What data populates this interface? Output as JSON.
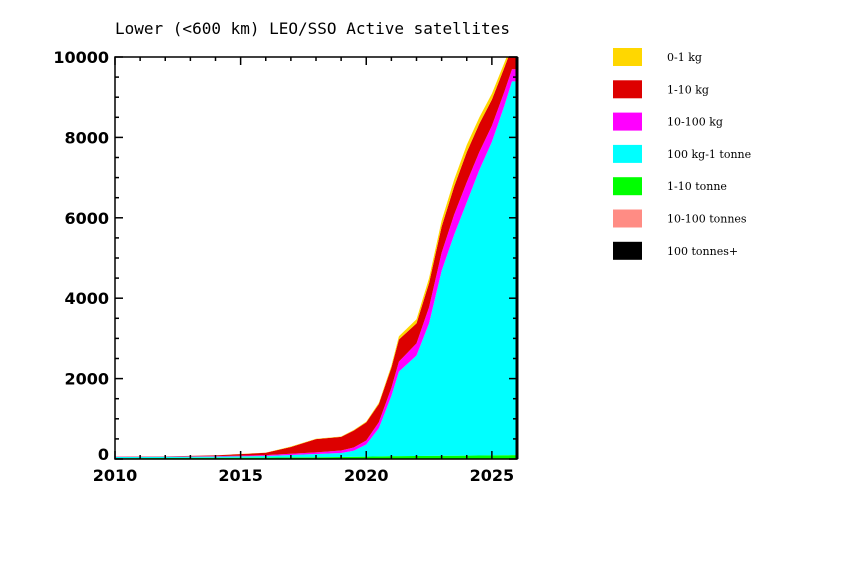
{
  "chart_data": {
    "type": "area",
    "stacked": true,
    "title": "Lower (<600 km) LEO/SSO Active satellites",
    "xlabel": "",
    "ylabel": "",
    "xlim": [
      2010,
      2026
    ],
    "ylim": [
      0,
      10000
    ],
    "x_ticks": [
      "2010",
      "2015",
      "2020",
      "2025"
    ],
    "y_ticks": [
      "0",
      "2000",
      "4000",
      "6000",
      "8000",
      "10000"
    ],
    "grid": false,
    "legend_position": "right",
    "x": [
      2010,
      2012,
      2014,
      2016,
      2017,
      2018,
      2019,
      2019.5,
      2020,
      2020.5,
      2021,
      2021.3,
      2022,
      2022.5,
      2023,
      2023.5,
      2024,
      2024.5,
      2025,
      2025.5,
      2025.8
    ],
    "series": [
      {
        "name": "100 tonnes+",
        "color": "#000000",
        "values": [
          0,
          0,
          0,
          0,
          0,
          0,
          0,
          0,
          0,
          0,
          0,
          0,
          0,
          0,
          0,
          0,
          0,
          0,
          0,
          0,
          0
        ]
      },
      {
        "name": "10-100 tonnes",
        "color": "#ff8c84",
        "values": [
          0,
          0,
          0,
          0,
          0,
          0,
          0,
          0,
          0,
          0,
          0,
          0,
          0,
          0,
          0,
          0,
          0,
          0,
          0,
          0,
          0
        ]
      },
      {
        "name": "1-10 tonne",
        "color": "#00ff00",
        "values": [
          20,
          25,
          30,
          35,
          40,
          45,
          50,
          55,
          60,
          65,
          70,
          72,
          75,
          78,
          80,
          82,
          85,
          88,
          90,
          92,
          95
        ]
      },
      {
        "name": "100 kg-1 tonne",
        "color": "#00ffff",
        "values": [
          30,
          30,
          30,
          40,
          60,
          80,
          100,
          150,
          300,
          700,
          1500,
          2100,
          2500,
          3300,
          4600,
          5500,
          6300,
          7100,
          7800,
          8700,
          9300
        ]
      },
      {
        "name": "10-100 kg",
        "color": "#ff00ff",
        "values": [
          5,
          5,
          10,
          20,
          30,
          40,
          60,
          80,
          100,
          150,
          200,
          250,
          300,
          400,
          450,
          500,
          500,
          450,
          400,
          350,
          300
        ]
      },
      {
        "name": "1-10 kg",
        "color": "#dd0000",
        "values": [
          5,
          5,
          20,
          60,
          170,
          330,
          340,
          420,
          450,
          450,
          500,
          550,
          500,
          600,
          650,
          700,
          750,
          700,
          650,
          600,
          550
        ]
      },
      {
        "name": "0-1 kg",
        "color": "#ffd700",
        "values": [
          0,
          0,
          0,
          5,
          10,
          10,
          10,
          15,
          20,
          30,
          50,
          80,
          100,
          120,
          150,
          170,
          180,
          160,
          150,
          120,
          100
        ]
      }
    ],
    "legend": [
      "0-1 kg",
      "1-10 kg",
      "10-100 kg",
      "100 kg-1 tonne",
      "1-10 tonne",
      "10-100 tonnes",
      "100 tonnes+"
    ]
  }
}
